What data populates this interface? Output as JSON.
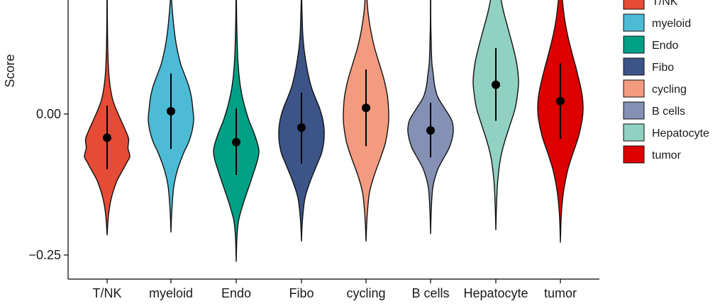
{
  "chart_data": {
    "type": "violin",
    "ylabel": "Score",
    "yticks": [
      0.0,
      -0.25
    ],
    "ytick_labels": [
      "0.00",
      "−0.25"
    ],
    "ylim": [
      -0.295,
      0.205
    ],
    "legend_position": "right",
    "categories": [
      "T/NK",
      "myeloid",
      "Endo",
      "Fibo",
      "cycling",
      "B cells",
      "Hepatocyte",
      "tumor"
    ],
    "series": [
      {
        "name": "T/NK",
        "color": "#E64B35",
        "median": -0.042,
        "range_low": -0.098,
        "range_high": 0.015,
        "whisker_low": -0.215,
        "whisker_high": 0.205,
        "profile": [
          [
            -0.215,
            0.0
          ],
          [
            -0.18,
            0.06
          ],
          [
            -0.15,
            0.18
          ],
          [
            -0.12,
            0.42
          ],
          [
            -0.1,
            0.68
          ],
          [
            -0.085,
            0.88
          ],
          [
            -0.075,
            1.0
          ],
          [
            -0.06,
            0.92
          ],
          [
            -0.045,
            0.95
          ],
          [
            -0.03,
            0.82
          ],
          [
            -0.01,
            0.6
          ],
          [
            0.01,
            0.38
          ],
          [
            0.03,
            0.22
          ],
          [
            0.06,
            0.1
          ],
          [
            0.1,
            0.04
          ],
          [
            0.14,
            0.02
          ],
          [
            0.18,
            0.01
          ],
          [
            0.205,
            0.005
          ]
        ]
      },
      {
        "name": "myeloid",
        "color": "#4DBBD5",
        "median": 0.005,
        "range_low": -0.062,
        "range_high": 0.072,
        "whisker_low": -0.21,
        "whisker_high": 0.205,
        "profile": [
          [
            -0.21,
            0.0
          ],
          [
            -0.17,
            0.04
          ],
          [
            -0.13,
            0.12
          ],
          [
            -0.1,
            0.28
          ],
          [
            -0.07,
            0.55
          ],
          [
            -0.05,
            0.78
          ],
          [
            -0.03,
            0.93
          ],
          [
            -0.01,
            1.0
          ],
          [
            0.01,
            0.96
          ],
          [
            0.03,
            0.9
          ],
          [
            0.05,
            0.78
          ],
          [
            0.07,
            0.6
          ],
          [
            0.09,
            0.42
          ],
          [
            0.12,
            0.25
          ],
          [
            0.15,
            0.14
          ],
          [
            0.18,
            0.07
          ],
          [
            0.205,
            0.02
          ]
        ]
      },
      {
        "name": "Endo",
        "color": "#00A087",
        "median": -0.05,
        "range_low": -0.108,
        "range_high": 0.01,
        "whisker_low": -0.262,
        "whisker_high": 0.205,
        "profile": [
          [
            -0.262,
            0.0
          ],
          [
            -0.22,
            0.03
          ],
          [
            -0.19,
            0.1
          ],
          [
            -0.16,
            0.3
          ],
          [
            -0.13,
            0.55
          ],
          [
            -0.1,
            0.8
          ],
          [
            -0.08,
            0.95
          ],
          [
            -0.065,
            1.0
          ],
          [
            -0.05,
            0.92
          ],
          [
            -0.03,
            0.75
          ],
          [
            -0.01,
            0.55
          ],
          [
            0.02,
            0.33
          ],
          [
            0.05,
            0.18
          ],
          [
            0.09,
            0.08
          ],
          [
            0.13,
            0.04
          ],
          [
            0.17,
            0.02
          ],
          [
            0.205,
            0.01
          ]
        ]
      },
      {
        "name": "Fibo",
        "color": "#3C5488",
        "median": -0.024,
        "range_low": -0.088,
        "range_high": 0.038,
        "whisker_low": -0.226,
        "whisker_high": 0.205,
        "profile": [
          [
            -0.226,
            0.0
          ],
          [
            -0.19,
            0.04
          ],
          [
            -0.15,
            0.15
          ],
          [
            -0.12,
            0.38
          ],
          [
            -0.09,
            0.68
          ],
          [
            -0.07,
            0.88
          ],
          [
            -0.05,
            0.98
          ],
          [
            -0.03,
            1.0
          ],
          [
            -0.01,
            0.94
          ],
          [
            0.01,
            0.8
          ],
          [
            0.03,
            0.6
          ],
          [
            0.05,
            0.42
          ],
          [
            0.08,
            0.25
          ],
          [
            0.11,
            0.13
          ],
          [
            0.14,
            0.06
          ],
          [
            0.17,
            0.03
          ],
          [
            0.205,
            0.01
          ]
        ]
      },
      {
        "name": "cycling",
        "color": "#F39B7F",
        "median": 0.011,
        "range_low": -0.057,
        "range_high": 0.079,
        "whisker_low": -0.226,
        "whisker_high": 0.205,
        "profile": [
          [
            -0.226,
            0.0
          ],
          [
            -0.18,
            0.05
          ],
          [
            -0.14,
            0.15
          ],
          [
            -0.11,
            0.35
          ],
          [
            -0.08,
            0.62
          ],
          [
            -0.05,
            0.86
          ],
          [
            -0.02,
            0.98
          ],
          [
            0.0,
            1.0
          ],
          [
            0.03,
            0.95
          ],
          [
            0.06,
            0.8
          ],
          [
            0.09,
            0.58
          ],
          [
            0.12,
            0.36
          ],
          [
            0.15,
            0.2
          ],
          [
            0.18,
            0.09
          ],
          [
            0.205,
            0.04
          ]
        ]
      },
      {
        "name": "B cells",
        "color": "#8491B4",
        "median": -0.029,
        "range_low": -0.077,
        "range_high": 0.02,
        "whisker_low": -0.213,
        "whisker_high": 0.205,
        "profile": [
          [
            -0.213,
            0.0
          ],
          [
            -0.17,
            0.03
          ],
          [
            -0.13,
            0.1
          ],
          [
            -0.1,
            0.3
          ],
          [
            -0.08,
            0.55
          ],
          [
            -0.06,
            0.82
          ],
          [
            -0.04,
            0.97
          ],
          [
            -0.025,
            1.0
          ],
          [
            -0.01,
            0.92
          ],
          [
            0.01,
            0.62
          ],
          [
            0.03,
            0.32
          ],
          [
            0.05,
            0.18
          ],
          [
            0.07,
            0.12
          ],
          [
            0.09,
            0.06
          ],
          [
            0.12,
            0.03
          ],
          [
            0.16,
            0.01
          ],
          [
            0.205,
            0.005
          ]
        ]
      },
      {
        "name": "Hepatocyte",
        "color": "#91D1C2",
        "median": 0.052,
        "range_low": -0.012,
        "range_high": 0.117,
        "whisker_low": -0.206,
        "whisker_high": 0.205,
        "profile": [
          [
            -0.206,
            0.0
          ],
          [
            -0.16,
            0.03
          ],
          [
            -0.12,
            0.08
          ],
          [
            -0.08,
            0.2
          ],
          [
            -0.05,
            0.38
          ],
          [
            -0.02,
            0.62
          ],
          [
            0.01,
            0.85
          ],
          [
            0.04,
            0.97
          ],
          [
            0.06,
            1.0
          ],
          [
            0.09,
            0.92
          ],
          [
            0.12,
            0.75
          ],
          [
            0.15,
            0.55
          ],
          [
            0.18,
            0.35
          ],
          [
            0.205,
            0.22
          ]
        ]
      },
      {
        "name": "tumor",
        "color": "#DC0000",
        "median": 0.023,
        "range_low": -0.044,
        "range_high": 0.09,
        "whisker_low": -0.228,
        "whisker_high": 0.205,
        "profile": [
          [
            -0.228,
            0.0
          ],
          [
            -0.18,
            0.04
          ],
          [
            -0.14,
            0.13
          ],
          [
            -0.1,
            0.32
          ],
          [
            -0.07,
            0.55
          ],
          [
            -0.04,
            0.8
          ],
          [
            -0.01,
            0.96
          ],
          [
            0.01,
            1.0
          ],
          [
            0.03,
            0.97
          ],
          [
            0.05,
            0.88
          ],
          [
            0.08,
            0.7
          ],
          [
            0.11,
            0.5
          ],
          [
            0.14,
            0.32
          ],
          [
            0.17,
            0.18
          ],
          [
            0.205,
            0.08
          ]
        ]
      }
    ]
  }
}
